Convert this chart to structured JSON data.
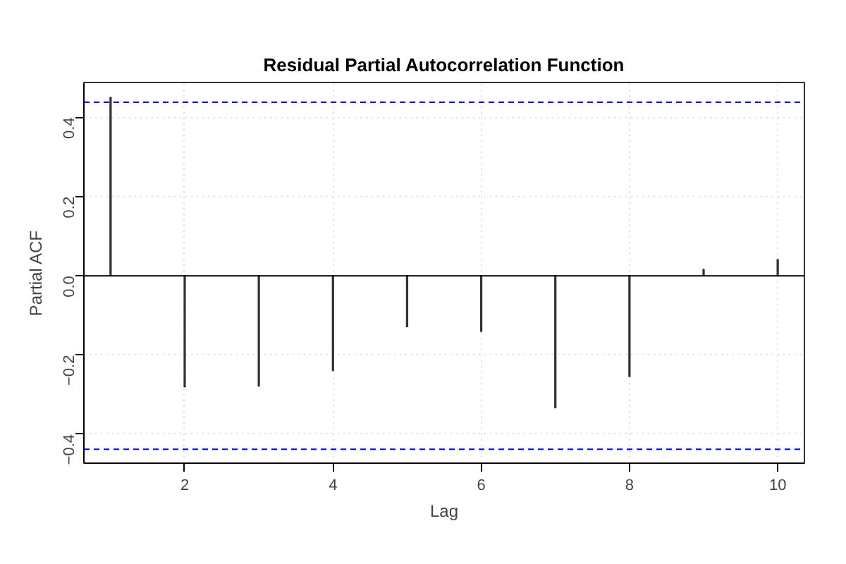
{
  "chart_data": {
    "type": "bar",
    "title": "Residual Partial Autocorrelation Function",
    "xlabel": "Lag",
    "ylabel": "Partial ACF",
    "x": [
      1,
      2,
      3,
      4,
      5,
      6,
      7,
      8,
      9,
      10
    ],
    "series": [
      {
        "color": "#333333",
        "values": [
          0.45,
          -0.28,
          -0.278,
          -0.239,
          -0.128,
          -0.14,
          -0.333,
          -0.254,
          0.016,
          0.041
        ]
      }
    ],
    "xlim": [
      0.64,
      10.36
    ],
    "ylim": [
      -0.473,
      0.488
    ],
    "xticks": [
      2,
      4,
      6,
      8,
      10
    ],
    "yticks": [
      -0.4,
      -0.2,
      {
        "value": 0,
        "label": "0.0"
      },
      0.2,
      0.4
    ],
    "ref_lines": [
      {
        "axis": "y",
        "value": 0,
        "color": "#000000",
        "line_style": "solid"
      },
      {
        "axis": "y",
        "value": 0.438,
        "color": "#0000ff",
        "line_style": "dashed"
      },
      {
        "axis": "y",
        "value": -0.438,
        "color": "#0000ff",
        "line_style": "dashed"
      }
    ],
    "grid": true
  }
}
